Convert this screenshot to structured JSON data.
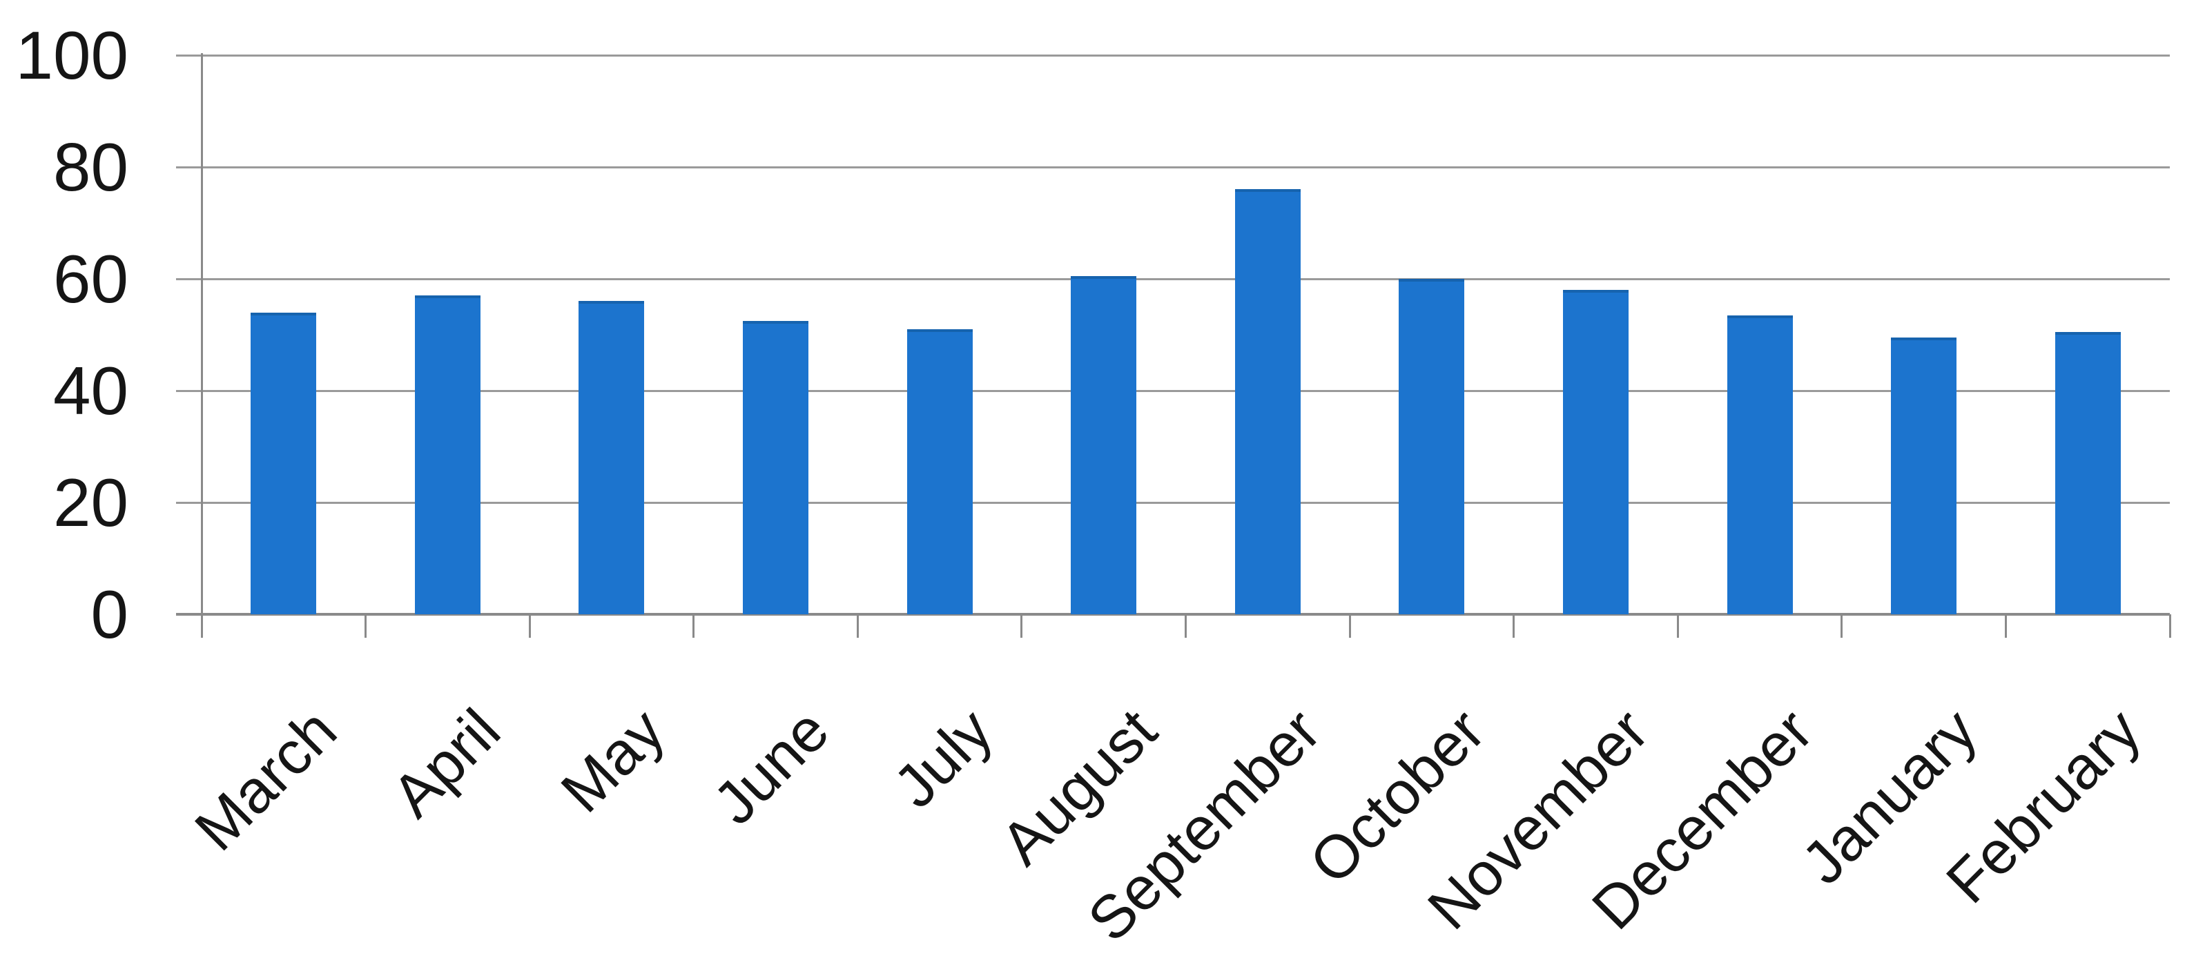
{
  "chart_data": {
    "type": "bar",
    "title": "",
    "xlabel": "",
    "ylabel": "",
    "categories": [
      "March",
      "April",
      "May",
      "June",
      "July",
      "August",
      "September",
      "October",
      "November",
      "December",
      "January",
      "February"
    ],
    "values": [
      54,
      57,
      56,
      52.5,
      51,
      60.5,
      76,
      60,
      58,
      53.5,
      49.5,
      50.5
    ],
    "ylim": [
      0,
      100
    ],
    "yticks": [
      0,
      20,
      40,
      60,
      80,
      100
    ],
    "grid": true,
    "legend": false,
    "x_label_rotation_deg": -45,
    "bar_color": "#1c74ce",
    "bar_edge_color": "#1663ae",
    "gridline_color": "#9a9a9a",
    "axis_color": "#8a8a8a",
    "text_color": "#151515",
    "background_color": "#ffffff"
  }
}
